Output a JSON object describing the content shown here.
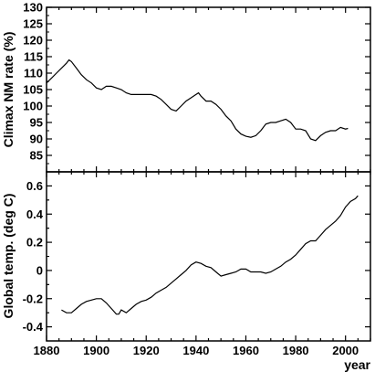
{
  "chart_data": [
    {
      "type": "line",
      "ylabel": "Climax NM rate (%)",
      "ylim": [
        80,
        130
      ],
      "yticks": [
        85,
        90,
        95,
        100,
        105,
        110,
        115,
        120,
        125,
        130
      ],
      "xlim": [
        1880,
        2010
      ],
      "grid": false,
      "series": [
        {
          "x": [
            1880,
            1882,
            1884,
            1886,
            1888,
            1889,
            1890,
            1892,
            1894,
            1896,
            1898,
            1900,
            1902,
            1904,
            1906,
            1908,
            1910,
            1912,
            1914,
            1916,
            1918,
            1920,
            1922,
            1924,
            1926,
            1928,
            1930,
            1932,
            1934,
            1936,
            1938,
            1940,
            1941,
            1942,
            1944,
            1946,
            1948,
            1950,
            1952,
            1954,
            1956,
            1958,
            1960,
            1962,
            1964,
            1966,
            1968,
            1970,
            1972,
            1974,
            1976,
            1978,
            1980,
            1982,
            1984,
            1986,
            1988,
            1990,
            1992,
            1994,
            1996,
            1998,
            2000,
            2001
          ],
          "values": [
            107,
            108.5,
            110,
            111.5,
            113,
            114,
            113.5,
            111.5,
            109.5,
            108,
            107,
            105.5,
            105,
            106,
            106,
            105.5,
            105,
            104,
            103.5,
            103.5,
            103.5,
            103.5,
            103.5,
            103,
            102,
            100.5,
            99,
            98.5,
            100,
            101.5,
            102.5,
            103.5,
            104,
            103,
            101.5,
            101.5,
            100.5,
            99,
            97,
            95.5,
            93,
            91.5,
            90.8,
            90.5,
            91,
            92.5,
            94.5,
            95,
            95,
            95.5,
            96,
            95,
            93,
            93,
            92.5,
            90,
            89.5,
            91,
            92,
            92.5,
            92.5,
            93.5,
            93,
            93.2
          ]
        }
      ]
    },
    {
      "type": "line",
      "xlabel": "year",
      "ylabel": "Global temp. (deg C)",
      "ylim": [
        -0.5,
        0.7
      ],
      "yticks": [
        -0.4,
        -0.2,
        0,
        0.2,
        0.4,
        0.6
      ],
      "xlim": [
        1880,
        2010
      ],
      "xticks": [
        1880,
        1900,
        1920,
        1940,
        1960,
        1980,
        2000
      ],
      "grid": false,
      "series": [
        {
          "x": [
            1886,
            1888,
            1890,
            1892,
            1894,
            1896,
            1898,
            1900,
            1902,
            1904,
            1906,
            1908,
            1909,
            1910,
            1912,
            1914,
            1916,
            1918,
            1920,
            1922,
            1924,
            1926,
            1928,
            1930,
            1932,
            1934,
            1936,
            1938,
            1940,
            1942,
            1944,
            1946,
            1948,
            1950,
            1952,
            1954,
            1956,
            1958,
            1960,
            1962,
            1964,
            1966,
            1968,
            1970,
            1972,
            1974,
            1976,
            1978,
            1980,
            1982,
            1984,
            1986,
            1988,
            1990,
            1992,
            1994,
            1996,
            1998,
            2000,
            2002,
            2004,
            2005
          ],
          "values": [
            -0.28,
            -0.3,
            -0.3,
            -0.27,
            -0.24,
            -0.22,
            -0.21,
            -0.2,
            -0.2,
            -0.23,
            -0.27,
            -0.31,
            -0.31,
            -0.28,
            -0.3,
            -0.27,
            -0.24,
            -0.22,
            -0.21,
            -0.19,
            -0.16,
            -0.14,
            -0.12,
            -0.09,
            -0.06,
            -0.03,
            0.0,
            0.04,
            0.06,
            0.05,
            0.03,
            0.02,
            -0.01,
            -0.04,
            -0.03,
            -0.02,
            -0.01,
            0.01,
            0.01,
            -0.01,
            -0.01,
            -0.01,
            -0.02,
            -0.01,
            0.01,
            0.03,
            0.06,
            0.08,
            0.11,
            0.15,
            0.19,
            0.21,
            0.21,
            0.25,
            0.29,
            0.32,
            0.35,
            0.39,
            0.45,
            0.49,
            0.51,
            0.53
          ]
        }
      ]
    }
  ],
  "colors": {
    "line": "#000000",
    "axes": "#000000",
    "background": "#ffffff"
  }
}
